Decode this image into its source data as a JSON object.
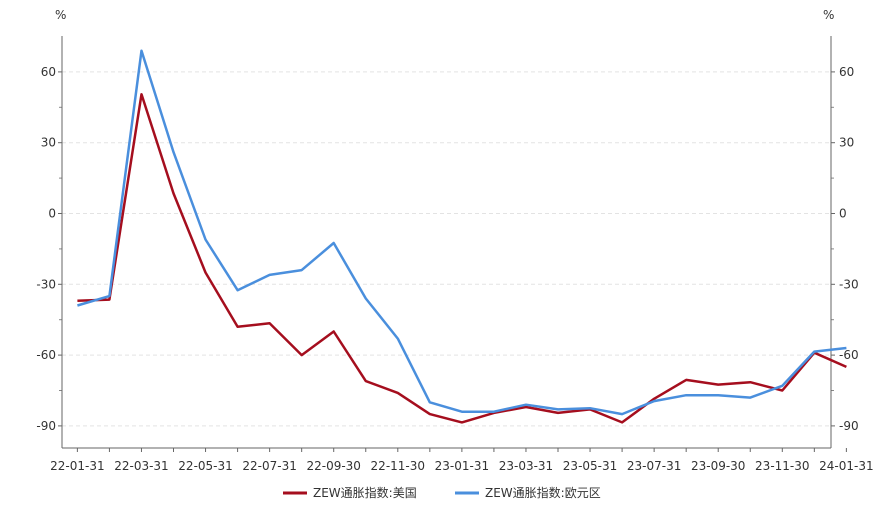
{
  "chart_data": {
    "type": "line",
    "left_unit": "%",
    "right_unit": "%",
    "ylim": [
      -100,
      75
    ],
    "yticks": [
      -90,
      -60,
      -30,
      0,
      30,
      60
    ],
    "grid": true,
    "legend_position": "bottom",
    "x": [
      "22-01-31",
      "22-02-28",
      "22-03-31",
      "22-04-30",
      "22-05-31",
      "22-06-30",
      "22-07-31",
      "22-08-31",
      "22-09-30",
      "22-10-31",
      "22-11-30",
      "22-12-31",
      "23-01-31",
      "23-02-28",
      "23-03-31",
      "23-04-30",
      "23-05-31",
      "23-06-30",
      "23-07-31",
      "23-08-31",
      "23-09-30",
      "23-10-31",
      "23-11-30",
      "23-12-31",
      "24-01-31"
    ],
    "x_tick_labels": [
      "22-01-31",
      "22-03-31",
      "22-05-31",
      "22-07-31",
      "22-09-30",
      "22-11-30",
      "23-01-31",
      "23-03-31",
      "23-05-31",
      "23-07-31",
      "23-09-30",
      "23-11-30",
      "24-01-31"
    ],
    "series": [
      {
        "name": "ZEW通胀指数:美国",
        "color": "#A50E1E",
        "values": [
          -37,
          -36.5,
          50.5,
          8.5,
          -25,
          -48,
          -46.5,
          -60,
          -50,
          -71,
          -76,
          -85,
          -88.5,
          -84.5,
          -82,
          -84.5,
          -83,
          -88.5,
          -78.5,
          -70.5,
          -72.5,
          -71.5,
          -75,
          -59,
          -65
        ]
      },
      {
        "name": "ZEW通胀指数:欧元区",
        "color": "#4A8FDD",
        "values": [
          -39,
          -35,
          69,
          26,
          -11,
          -32.5,
          -26,
          -24,
          -12.5,
          -36,
          -53,
          -80,
          -84,
          -84,
          -81,
          -83,
          -82.5,
          -85,
          -79.5,
          -77,
          -77,
          -78,
          -73,
          -58.5,
          -57
        ]
      }
    ]
  }
}
